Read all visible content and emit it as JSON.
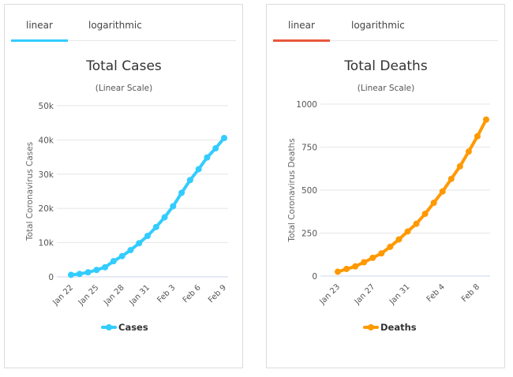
{
  "tabs": [
    {
      "label": "linear"
    },
    {
      "label": "logarithmic"
    }
  ],
  "chart_data": [
    {
      "type": "line",
      "title": "Total Cases",
      "subtitle": "(Linear Scale)",
      "ylabel": "Total Coronavirus Cases",
      "xlabel": "",
      "color": "#33ccff",
      "tab_color": "#33ccff",
      "legend": "Cases",
      "legend_position": "bottom",
      "ylim": [
        0,
        50000
      ],
      "yticks": [
        0,
        10000,
        20000,
        30000,
        40000,
        50000
      ],
      "ytick_labels": [
        "0",
        "10k",
        "20k",
        "30k",
        "40k",
        "50k"
      ],
      "x": [
        "Jan 22",
        "Jan 23",
        "Jan 24",
        "Jan 25",
        "Jan 26",
        "Jan 27",
        "Jan 28",
        "Jan 29",
        "Jan 30",
        "Jan 31",
        "Feb 1",
        "Feb 2",
        "Feb 3",
        "Feb 4",
        "Feb 5",
        "Feb 6",
        "Feb 7",
        "Feb 8",
        "Feb 9"
      ],
      "xtick_labels": [
        "Jan 22",
        "Jan 25",
        "Jan 28",
        "Jan 31",
        "Feb 3",
        "Feb 6",
        "Feb 9"
      ],
      "values": [
        580,
        845,
        1317,
        2015,
        2800,
        4581,
        6058,
        7813,
        9823,
        11950,
        14553,
        17391,
        20630,
        24545,
        28266,
        31439,
        34876,
        37552,
        40553
      ]
    },
    {
      "type": "line",
      "title": "Total Deaths",
      "subtitle": "(Linear Scale)",
      "ylabel": "Total Coronavirus Deaths",
      "xlabel": "",
      "color": "#ff9900",
      "tab_color": "#e8573c",
      "legend": "Deaths",
      "legend_position": "bottom",
      "ylim": [
        0,
        1000
      ],
      "yticks": [
        0,
        250,
        500,
        750,
        1000
      ],
      "ytick_labels": [
        "0",
        "250",
        "500",
        "750",
        "1000"
      ],
      "x": [
        "Jan 23",
        "Jan 24",
        "Jan 25",
        "Jan 26",
        "Jan 27",
        "Jan 28",
        "Jan 29",
        "Jan 30",
        "Jan 31",
        "Feb 1",
        "Feb 2",
        "Feb 3",
        "Feb 4",
        "Feb 5",
        "Feb 6",
        "Feb 7",
        "Feb 8",
        "Feb 9"
      ],
      "xtick_labels": [
        "Jan 23",
        "Jan 27",
        "Jan 31",
        "Feb 4",
        "Feb 8"
      ],
      "values": [
        25,
        41,
        56,
        80,
        106,
        132,
        170,
        213,
        259,
        304,
        362,
        426,
        492,
        565,
        638,
        724,
        813,
        910
      ]
    }
  ]
}
